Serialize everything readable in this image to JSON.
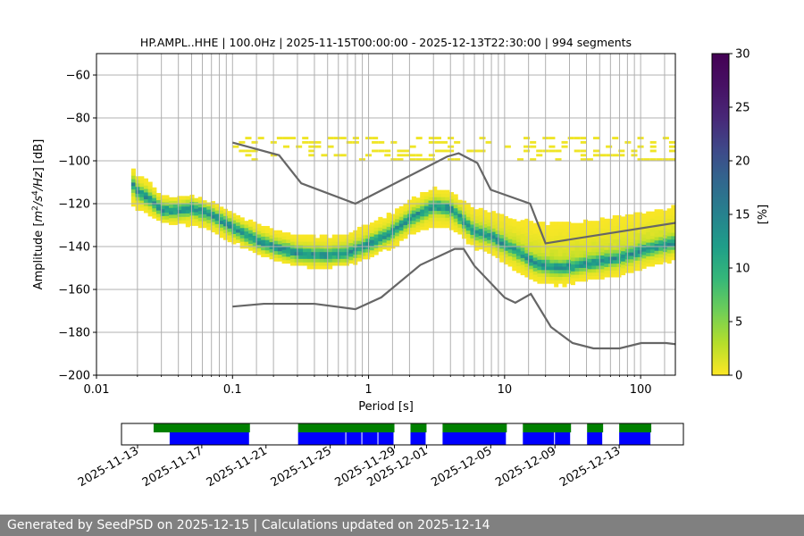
{
  "chart_data": {
    "type": "heatmap",
    "title": "HP.AMPL..HHE | 100.0Hz | 2025-11-15T00:00:00 - 2025-12-13T22:30:00 | 994 segments",
    "xlabel": "Period [s]",
    "ylabel_parts": [
      "Amplitude [",
      "m",
      "2",
      "/s",
      "4",
      "/Hz",
      "] [dB]"
    ],
    "x_scale": "log",
    "xlim": [
      0.01,
      180
    ],
    "ylim": [
      -200,
      -50
    ],
    "x_ticks": [
      0.01,
      0.1,
      1,
      10,
      100
    ],
    "x_tick_labels": [
      "0.01",
      "0.1",
      "1",
      "10",
      "100"
    ],
    "y_ticks": [
      -200,
      -180,
      -160,
      -140,
      -120,
      -100,
      -80,
      -60
    ],
    "y_tick_labels": [
      "−200",
      "−180",
      "−160",
      "−140",
      "−120",
      "−100",
      "−80",
      "−60"
    ],
    "grid": true,
    "colorbar": {
      "label": "[%]",
      "range": [
        0,
        30
      ],
      "ticks": [
        0,
        5,
        10,
        15,
        20,
        25,
        30
      ],
      "tick_labels": [
        "0",
        "5",
        "10",
        "15",
        "20",
        "25",
        "30"
      ],
      "colormap": "viridis_r"
    },
    "psd_mode": {
      "period": [
        0.018,
        0.02,
        0.025,
        0.03,
        0.04,
        0.05,
        0.07,
        0.1,
        0.15,
        0.2,
        0.3,
        0.5,
        0.7,
        1,
        1.5,
        2,
        3,
        4,
        5,
        6,
        8,
        10,
        13,
        17,
        25,
        40,
        70,
        100,
        180
      ],
      "amplitude": [
        -110,
        -114,
        -118,
        -123,
        -123,
        -122,
        -125,
        -131,
        -137,
        -140,
        -143,
        -144,
        -143,
        -139,
        -133,
        -127,
        -121,
        -122,
        -128,
        -133,
        -135,
        -139,
        -143,
        -148,
        -150,
        -148,
        -145,
        -142,
        -138
      ]
    },
    "psd_spread": {
      "lower": [
        -125,
        -127,
        -129,
        -131,
        -133,
        -134,
        -137,
        -141,
        -146,
        -149,
        -152,
        -152,
        -151,
        -148,
        -144,
        -139,
        -135,
        -136,
        -140,
        -144,
        -148,
        -152,
        -157,
        -161,
        -162,
        -160,
        -158,
        -155,
        -150
      ],
      "upper": [
        -98,
        -103,
        -107,
        -113,
        -114,
        -114,
        -117,
        -121,
        -126,
        -129,
        -131,
        -131,
        -129,
        -125,
        -120,
        -114,
        -109,
        -110,
        -114,
        -118,
        -118,
        -119,
        -120,
        -120,
        -119,
        -118,
        -117,
        -116,
        -113
      ]
    },
    "sparse_band": {
      "period_range": [
        0.1,
        180
      ],
      "amplitude_range": [
        -100,
        -88
      ]
    },
    "high_noise_model": {
      "period": [
        0.1,
        0.22,
        0.32,
        0.8,
        3.8,
        4.6,
        6.3,
        7.9,
        15.4,
        20,
        354.8
      ],
      "amplitude": [
        -91.5,
        -97.4,
        -110.5,
        -120,
        -98,
        -96.5,
        -101,
        -113.5,
        -120,
        -138.5,
        -126
      ]
    },
    "low_noise_model": {
      "period": [
        0.1,
        0.17,
        0.4,
        0.8,
        1.24,
        2.4,
        4.3,
        5,
        6,
        10,
        12,
        15.6,
        21.9,
        31.6,
        45,
        70,
        101,
        154,
        328
      ],
      "amplitude": [
        -168,
        -166.7,
        -166.7,
        -169.2,
        -163.7,
        -148.6,
        -141.1,
        -141.1,
        -149,
        -163.8,
        -166.2,
        -162.1,
        -177.5,
        -185,
        -187.5,
        -187.5,
        -185,
        -185,
        -187.5
      ]
    },
    "vertical_markers_period": [
      0.02,
      0.03,
      0.04,
      0.05,
      0.06,
      0.07,
      0.08,
      0.09,
      0.15,
      0.2,
      0.3,
      0.4,
      0.5,
      0.6,
      0.7,
      0.8,
      0.9,
      1.5,
      2,
      3,
      4,
      5,
      6,
      7,
      8,
      9,
      15,
      20,
      30,
      40,
      50,
      60,
      70,
      80,
      90,
      150
    ],
    "availability": {
      "date_range": [
        "2025-11-12",
        "2025-12-17"
      ],
      "tick_labels": [
        "2025-11-13",
        "2025-11-17",
        "2025-11-21",
        "2025-11-25",
        "2025-11-29",
        "2025-12-01",
        "2025-12-05",
        "2025-12-09",
        "2025-12-13"
      ],
      "data_spans": [
        [
          "2025-11-14",
          "2025-11-20"
        ],
        [
          "2025-11-23",
          "2025-11-29"
        ],
        [
          "2025-11-30",
          "2025-12-01"
        ],
        [
          "2025-12-02",
          "2025-12-06"
        ],
        [
          "2025-12-07",
          "2025-12-10"
        ],
        [
          "2025-12-11",
          "2025-12-12"
        ],
        [
          "2025-12-13",
          "2025-12-15"
        ]
      ],
      "processed_spans": [
        [
          "2025-11-15",
          "2025-11-20"
        ],
        [
          "2025-11-23",
          "2025-11-26"
        ],
        [
          "2025-11-26",
          "2025-11-27"
        ],
        [
          "2025-11-27",
          "2025-11-28"
        ],
        [
          "2025-11-28",
          "2025-11-29"
        ],
        [
          "2025-11-30",
          "2025-12-01"
        ],
        [
          "2025-12-02",
          "2025-12-06"
        ],
        [
          "2025-12-07",
          "2025-12-09"
        ],
        [
          "2025-12-09",
          "2025-12-10"
        ],
        [
          "2025-12-11",
          "2025-12-12"
        ],
        [
          "2025-12-13",
          "2025-12-15"
        ]
      ],
      "data_color": "#008000",
      "processed_color": "#0000ff"
    }
  },
  "footer": {
    "text": "Generated by SeedPSD on 2025-12-15 | Calculations updated on 2025-12-14"
  },
  "colors": {
    "noise_model": "#666666",
    "grid": "#b0b0b0"
  }
}
